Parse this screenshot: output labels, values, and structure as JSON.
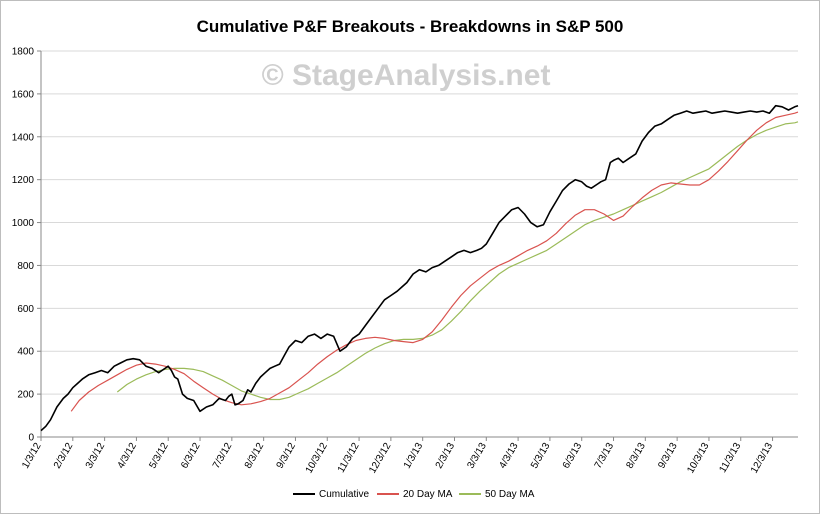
{
  "chart_data": {
    "type": "line",
    "title": "Cumulative P&F Breakouts - Breakdowns in S&P 500",
    "watermark": "© StageAnalysis.net",
    "xlabel": "",
    "ylabel": "",
    "ylim": [
      0,
      1800
    ],
    "yticks": [
      0,
      200,
      400,
      600,
      800,
      1000,
      1200,
      1400,
      1600,
      1800
    ],
    "xlim": [
      0,
      23.8
    ],
    "xtick_labels": [
      "1/3/12",
      "2/3/12",
      "3/3/12",
      "4/3/12",
      "5/3/12",
      "6/3/12",
      "7/3/12",
      "8/3/12",
      "9/3/12",
      "10/3/12",
      "11/3/12",
      "12/3/12",
      "1/3/13",
      "2/3/13",
      "3/3/13",
      "4/3/13",
      "5/3/13",
      "6/3/13",
      "7/3/13",
      "8/3/13",
      "9/3/13",
      "10/3/13",
      "11/3/13",
      "12/3/13"
    ],
    "grid": true,
    "legend_position": "bottom",
    "colors": {
      "cumulative": "#000000",
      "ma20": "#d9534f",
      "ma50": "#9bbb59",
      "grid": "#d9d9d9"
    },
    "series": [
      {
        "name": "Cumulative",
        "x": [
          0,
          0.15,
          0.3,
          0.5,
          0.7,
          0.85,
          1,
          1.15,
          1.3,
          1.5,
          1.7,
          1.9,
          2.1,
          2.3,
          2.5,
          2.7,
          2.9,
          3.1,
          3.3,
          3.5,
          3.7,
          3.9,
          4.0,
          4.1,
          4.2,
          4.3,
          4.45,
          4.6,
          4.8,
          5.0,
          5.2,
          5.4,
          5.6,
          5.8,
          5.9,
          6.0,
          6.1,
          6.2,
          6.35,
          6.5,
          6.6,
          6.75,
          6.9,
          7.05,
          7.2,
          7.35,
          7.5,
          7.65,
          7.8,
          8.0,
          8.2,
          8.4,
          8.6,
          8.8,
          9.0,
          9.2,
          9.4,
          9.6,
          9.8,
          10.0,
          10.2,
          10.4,
          10.6,
          10.8,
          11.0,
          11.2,
          11.35,
          11.5,
          11.7,
          11.9,
          12.1,
          12.3,
          12.5,
          12.7,
          12.9,
          13.1,
          13.3,
          13.5,
          13.7,
          13.85,
          14.0,
          14.2,
          14.4,
          14.6,
          14.8,
          15.0,
          15.2,
          15.4,
          15.6,
          15.8,
          16.0,
          16.2,
          16.4,
          16.6,
          16.8,
          17.0,
          17.15,
          17.3,
          17.5,
          17.6,
          17.75,
          17.9,
          18.0,
          18.15,
          18.3,
          18.5,
          18.7,
          18.9,
          19.1,
          19.3,
          19.5,
          19.7,
          19.9,
          20.1,
          20.3,
          20.5,
          20.7,
          20.9,
          21.1,
          21.3,
          21.5,
          21.7,
          21.9,
          22.1,
          22.3,
          22.5,
          22.7,
          22.9,
          23.1,
          23.3,
          23.5,
          23.7,
          23.8
        ],
        "values": [
          30,
          50,
          80,
          140,
          180,
          200,
          230,
          250,
          270,
          290,
          300,
          310,
          300,
          330,
          345,
          360,
          365,
          360,
          330,
          320,
          300,
          320,
          330,
          310,
          280,
          270,
          200,
          180,
          170,
          120,
          140,
          150,
          180,
          170,
          190,
          200,
          150,
          155,
          170,
          220,
          210,
          250,
          280,
          300,
          320,
          330,
          340,
          380,
          420,
          450,
          440,
          470,
          480,
          460,
          480,
          470,
          400,
          420,
          460,
          480,
          520,
          560,
          600,
          640,
          660,
          680,
          700,
          720,
          760,
          780,
          770,
          790,
          800,
          820,
          840,
          860,
          870,
          860,
          870,
          880,
          900,
          950,
          1000,
          1030,
          1060,
          1070,
          1040,
          1000,
          980,
          990,
          1050,
          1100,
          1150,
          1180,
          1200,
          1190,
          1170,
          1160,
          1180,
          1190,
          1200,
          1280,
          1290,
          1300,
          1280,
          1300,
          1320,
          1380,
          1420,
          1450,
          1460,
          1480,
          1500,
          1510,
          1520,
          1510,
          1515,
          1520,
          1510,
          1515,
          1520,
          1515,
          1510,
          1515,
          1520,
          1515,
          1520,
          1510,
          1545,
          1540,
          1525,
          1540,
          1545
        ]
      },
      {
        "name": "20 Day MA",
        "x": [
          0.95,
          1.2,
          1.5,
          1.8,
          2.1,
          2.4,
          2.7,
          3.0,
          3.3,
          3.6,
          3.9,
          4.2,
          4.5,
          4.8,
          5.1,
          5.4,
          5.7,
          6.0,
          6.3,
          6.6,
          6.9,
          7.2,
          7.5,
          7.8,
          8.1,
          8.4,
          8.7,
          9.0,
          9.3,
          9.6,
          9.9,
          10.2,
          10.5,
          10.8,
          11.1,
          11.4,
          11.7,
          12.0,
          12.3,
          12.6,
          12.9,
          13.2,
          13.5,
          13.8,
          14.1,
          14.4,
          14.7,
          15.0,
          15.3,
          15.6,
          15.9,
          16.2,
          16.5,
          16.8,
          17.1,
          17.4,
          17.7,
          18.0,
          18.3,
          18.6,
          18.9,
          19.2,
          19.5,
          19.8,
          20.1,
          20.4,
          20.7,
          21.0,
          21.3,
          21.6,
          21.9,
          22.2,
          22.5,
          22.8,
          23.1,
          23.4,
          23.7,
          23.8
        ],
        "values": [
          120,
          170,
          210,
          240,
          265,
          290,
          315,
          335,
          345,
          340,
          330,
          315,
          295,
          260,
          230,
          200,
          175,
          160,
          150,
          155,
          165,
          180,
          205,
          230,
          265,
          300,
          340,
          375,
          405,
          430,
          450,
          460,
          465,
          460,
          450,
          445,
          440,
          455,
          490,
          545,
          605,
          660,
          705,
          740,
          775,
          800,
          820,
          845,
          870,
          890,
          915,
          950,
          995,
          1035,
          1060,
          1060,
          1040,
          1010,
          1030,
          1075,
          1115,
          1150,
          1175,
          1185,
          1180,
          1175,
          1175,
          1200,
          1240,
          1285,
          1335,
          1385,
          1430,
          1465,
          1490,
          1500,
          1510,
          1515
        ]
      },
      {
        "name": "50 Day MA",
        "x": [
          2.4,
          2.7,
          3.0,
          3.3,
          3.6,
          3.9,
          4.2,
          4.5,
          4.8,
          5.1,
          5.4,
          5.7,
          6.0,
          6.3,
          6.6,
          6.9,
          7.2,
          7.5,
          7.8,
          8.1,
          8.4,
          8.7,
          9.0,
          9.3,
          9.6,
          9.9,
          10.2,
          10.5,
          10.8,
          11.1,
          11.4,
          11.7,
          12.0,
          12.3,
          12.6,
          12.9,
          13.2,
          13.5,
          13.8,
          14.1,
          14.4,
          14.7,
          15.0,
          15.3,
          15.6,
          15.9,
          16.2,
          16.5,
          16.8,
          17.1,
          17.4,
          17.7,
          18.0,
          18.3,
          18.6,
          18.9,
          19.2,
          19.5,
          19.8,
          20.1,
          20.4,
          20.7,
          21.0,
          21.3,
          21.6,
          21.9,
          22.2,
          22.5,
          22.8,
          23.1,
          23.4,
          23.7,
          23.8
        ],
        "values": [
          210,
          245,
          270,
          290,
          305,
          315,
          320,
          320,
          315,
          305,
          285,
          265,
          240,
          215,
          200,
          185,
          175,
          175,
          185,
          205,
          225,
          250,
          275,
          300,
          330,
          360,
          390,
          415,
          435,
          450,
          455,
          455,
          460,
          475,
          500,
          540,
          585,
          635,
          680,
          720,
          760,
          790,
          810,
          830,
          850,
          870,
          900,
          930,
          960,
          990,
          1010,
          1025,
          1040,
          1060,
          1080,
          1100,
          1120,
          1140,
          1165,
          1190,
          1210,
          1230,
          1250,
          1285,
          1320,
          1355,
          1385,
          1410,
          1430,
          1445,
          1460,
          1465,
          1470
        ]
      }
    ]
  }
}
